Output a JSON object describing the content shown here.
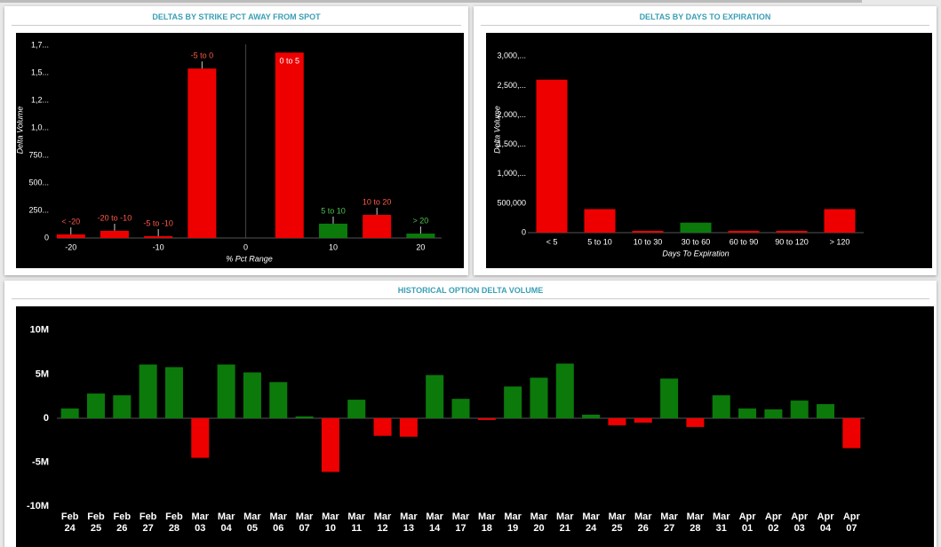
{
  "chart_data": [
    {
      "type": "bar",
      "title": "DELTAS BY STRIKE PCT AWAY FROM SPOT",
      "xlabel": "% Pct Range",
      "ylabel": "Delta Volume",
      "x": [
        -20,
        -15,
        -10,
        -5,
        5,
        10,
        15,
        20
      ],
      "categories": [
        "< -20",
        "-20 to -10",
        "-5 to -10",
        "-5 to 0",
        "0 to 5",
        "5 to 10",
        "10 to 20",
        "> 20"
      ],
      "values": [
        32000,
        65000,
        16000,
        1540000,
        1685000,
        130000,
        210000,
        40000
      ],
      "colors": [
        "#ee0000",
        "#ee0000",
        "#ee0000",
        "#ee0000",
        "#ee0000",
        "#0b7a0b",
        "#ee0000",
        "#0b7a0b"
      ],
      "xlim": [
        -21.6,
        22.4
      ],
      "xticks": [
        -20,
        -10,
        0,
        10,
        20
      ],
      "ylim": [
        0,
        1800000
      ],
      "yticks": [
        0,
        {
          "value": 250000,
          "label": "250..."
        },
        {
          "value": 500000,
          "label": "500..."
        },
        {
          "value": 750000,
          "label": "750..."
        },
        {
          "value": 1000000,
          "label": "1,0..."
        },
        {
          "value": 1250000,
          "label": "1,2..."
        },
        {
          "value": 1500000,
          "label": "1,5..."
        },
        {
          "value": 1750000,
          "label": "1,7..."
        }
      ],
      "grid": false
    },
    {
      "type": "bar",
      "title": "DELTAS BY DAYS TO EXPIRATION",
      "xlabel": "Days To Expiration",
      "ylabel": "Delta Volume",
      "categories": [
        "< 5",
        "5 to 10",
        "10 to 30",
        "30 to 60",
        "60 to 90",
        "90 to 120",
        "> 120"
      ],
      "values": [
        2600000,
        400000,
        30000,
        170000,
        30000,
        30000,
        400000
      ],
      "colors": [
        "#ee0000",
        "#ee0000",
        "#ee0000",
        "#0b7a0b",
        "#ee0000",
        "#ee0000",
        "#ee0000"
      ],
      "ylim": [
        0,
        3200000
      ],
      "yticks": [
        0,
        {
          "value": 500000,
          "label": "500,000"
        },
        {
          "value": 1000000,
          "label": "1,000,..."
        },
        {
          "value": 1500000,
          "label": "1,500,..."
        },
        {
          "value": 2000000,
          "label": "2,000,..."
        },
        {
          "value": 2500000,
          "label": "2,500,..."
        },
        {
          "value": 3000000,
          "label": "3,000,..."
        }
      ],
      "grid": false
    },
    {
      "type": "bar",
      "title": "HISTORICAL OPTION DELTA VOLUME",
      "categories": [
        "Feb 24",
        "Feb 25",
        "Feb 26",
        "Feb 27",
        "Feb 28",
        "Mar 03",
        "Mar 04",
        "Mar 05",
        "Mar 06",
        "Mar 07",
        "Mar 10",
        "Mar 11",
        "Mar 12",
        "Mar 13",
        "Mar 14",
        "Mar 17",
        "Mar 18",
        "Mar 19",
        "Mar 20",
        "Mar 21",
        "Mar 24",
        "Mar 25",
        "Mar 26",
        "Mar 27",
        "Mar 28",
        "Mar 31",
        "Apr 01",
        "Apr 02",
        "Apr 03",
        "Apr 04",
        "Apr 07"
      ],
      "values": [
        1100000,
        2800000,
        2600000,
        6100000,
        5800000,
        -4500000,
        6100000,
        5200000,
        4100000,
        200000,
        -6100000,
        2100000,
        -2000000,
        -2100000,
        4900000,
        2200000,
        -200000,
        3600000,
        4600000,
        6200000,
        400000,
        -800000,
        -500000,
        4500000,
        -1000000,
        2600000,
        1100000,
        1000000,
        2000000,
        1600000,
        -3400000
      ],
      "positive_color": "#0b7a0b",
      "negative_color": "#ee0000",
      "ylim": [
        -11000000,
        12000000
      ],
      "yticks": [
        {
          "value": -10000000,
          "label": "-10M"
        },
        {
          "value": -5000000,
          "label": "-5M"
        },
        0,
        {
          "value": 5000000,
          "label": "5M"
        },
        {
          "value": 10000000,
          "label": "10M"
        }
      ],
      "grid": false
    }
  ]
}
